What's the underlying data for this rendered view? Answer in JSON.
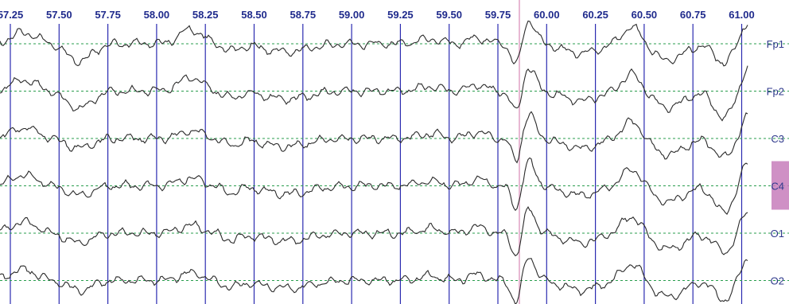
{
  "chart_data": {
    "type": "line",
    "x_unit": "seconds",
    "xlim": [
      57.25,
      61.25
    ],
    "x_ticks": [
      "57.25",
      "57.50",
      "57.75",
      "58.00",
      "58.25",
      "58.50",
      "58.75",
      "59.00",
      "59.25",
      "59.50",
      "59.75",
      "60.00",
      "60.25",
      "60.50",
      "60.75",
      "61.00"
    ],
    "time_marker": 59.86,
    "channels": [
      "Fp1",
      "Fp2",
      "C3",
      "C4",
      "O1",
      "O2"
    ],
    "selected_channel": "C4",
    "baseline_style": "dotted",
    "grid": true
  },
  "colors": {
    "tick_text": "#1f2a8c",
    "grid_line": "#2b2bb0",
    "baseline": "#2a9d4e",
    "trace": "#2a2a2a",
    "channel_label": "#2f3a8c",
    "marker_line": "#e8b7d2",
    "selection": "#c77dbb"
  }
}
